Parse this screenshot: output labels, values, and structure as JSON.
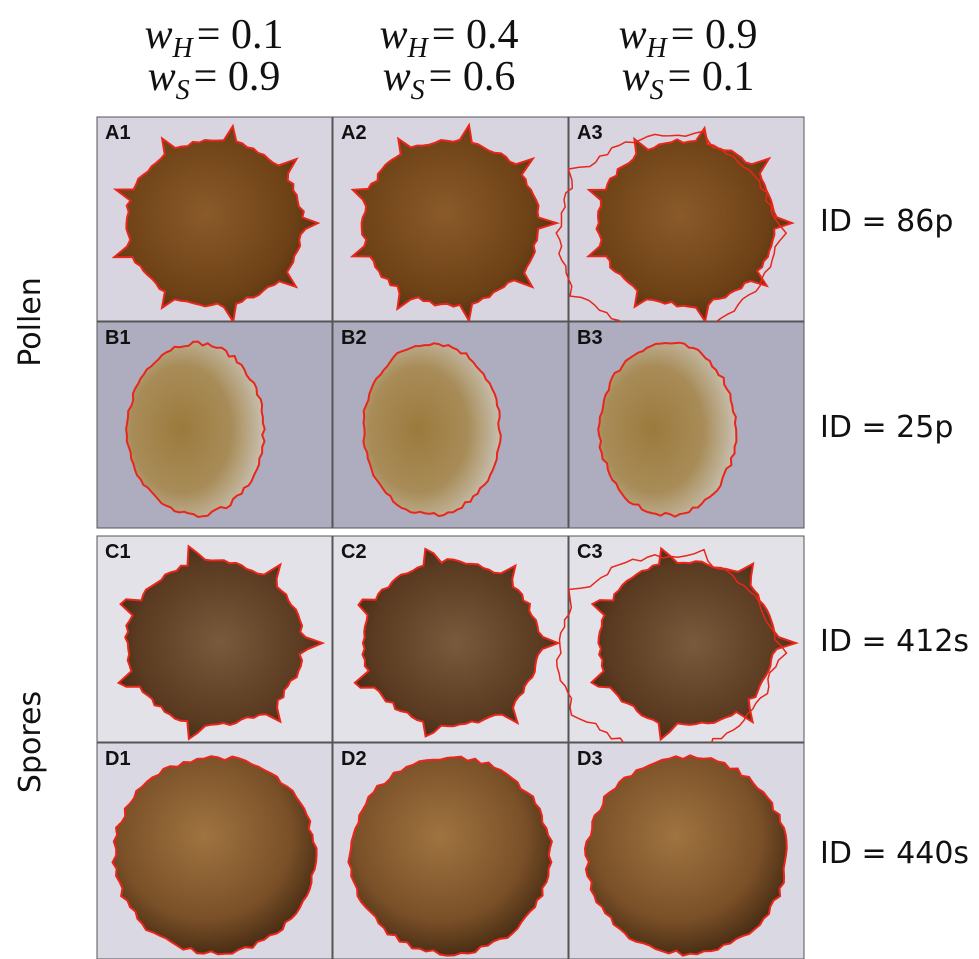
{
  "column_headers": [
    {
      "line1": {
        "symbol": "w",
        "subscript": "H",
        "text": "= 0.1"
      },
      "line2": {
        "symbol": "w",
        "subscript": "S",
        "text": "= 0.9"
      }
    },
    {
      "line1": {
        "symbol": "w",
        "subscript": "H",
        "text": "= 0.4"
      },
      "line2": {
        "symbol": "w",
        "subscript": "S",
        "text": "= 0.6"
      }
    },
    {
      "line1": {
        "symbol": "w",
        "subscript": "H",
        "text": "= 0.9"
      },
      "line2": {
        "symbol": "w",
        "subscript": "S",
        "text": "= 0.1"
      }
    }
  ],
  "row_groups": [
    {
      "label": "Pollen"
    },
    {
      "label": "Spores"
    }
  ],
  "rows": [
    {
      "id_label": "ID = 86p",
      "panels": [
        "A1",
        "A2",
        "A3"
      ]
    },
    {
      "id_label": "ID = 25p",
      "panels": [
        "B1",
        "B2",
        "B3"
      ]
    },
    {
      "id_label": "ID = 412s",
      "panels": [
        "C1",
        "C2",
        "C3"
      ]
    },
    {
      "id_label": "ID = 440s",
      "panels": [
        "D1",
        "D2",
        "D3"
      ]
    }
  ]
}
